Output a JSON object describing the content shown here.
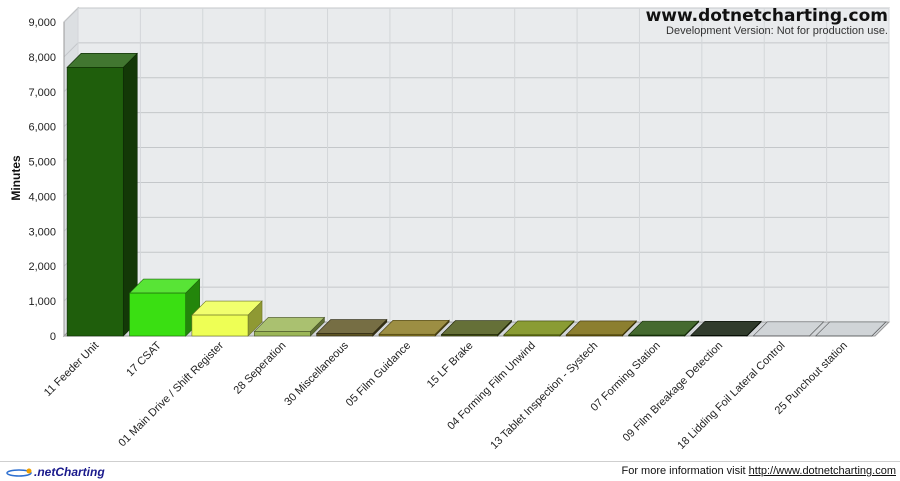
{
  "watermark": {
    "title": "www.dotnetcharting.com",
    "subtitle": "Development Version: Not for production use."
  },
  "footer": {
    "logo_text": ".netCharting",
    "info_prefix": "For more information visit ",
    "info_link": "http://www.dotnetcharting.com"
  },
  "chart_data": {
    "type": "bar",
    "title": "",
    "xlabel": "",
    "ylabel": "Minutes",
    "ylim": [
      0,
      9000
    ],
    "yticks": [
      0,
      1000,
      2000,
      3000,
      4000,
      5000,
      6000,
      7000,
      8000,
      9000
    ],
    "ytick_labels": [
      "0",
      "1,000",
      "2,000",
      "3,000",
      "4,000",
      "5,000",
      "6,000",
      "7,000",
      "8,000",
      "9,000"
    ],
    "grid": true,
    "categories": [
      "11 Feeder Unit",
      "17 CSAT",
      "01 Main Drive / Shift Register",
      "28 Seperation",
      "30 Miscellaneous",
      "05 Film Guidance",
      "15 LF Brake",
      "04 Forming Film Unwind",
      "13 Tablet Inspection - Systech",
      "07 Forming Station",
      "09 Film Breakage Detection",
      "18 Lidding Foil Lateral Control",
      "25 Punchout station"
    ],
    "values": [
      7700,
      1230,
      600,
      130,
      70,
      50,
      40,
      30,
      30,
      25,
      20,
      5,
      3
    ],
    "colors": [
      "#1f5e0c",
      "#3adf12",
      "#eeff55",
      "#9bb657",
      "#5e5423",
      "#8a7a22",
      "#4a5715",
      "#758a10",
      "#78680b",
      "#24500a",
      "#0d1a08",
      "#c8ccd0",
      "#c8ccd0"
    ]
  }
}
